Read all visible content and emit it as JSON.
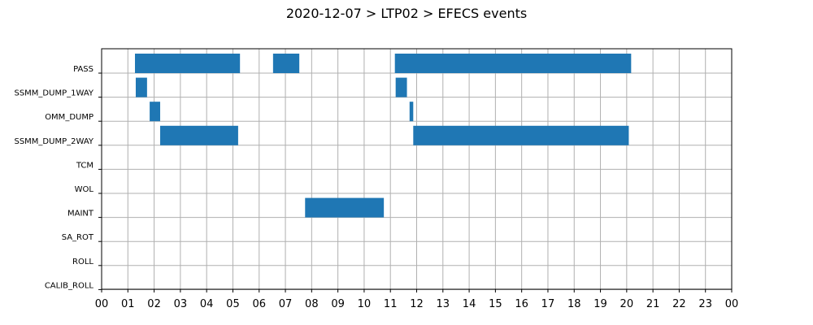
{
  "chart_data": {
    "type": "bar",
    "orientation": "horizontal-timeline",
    "title": "2020-12-07 > LTP02 > EFECS events",
    "xlabel": "",
    "ylabel": "",
    "x_range_hours": [
      0,
      24
    ],
    "x_tick_labels": [
      "00",
      "01",
      "02",
      "03",
      "04",
      "05",
      "06",
      "07",
      "08",
      "09",
      "10",
      "11",
      "12",
      "13",
      "14",
      "15",
      "16",
      "17",
      "18",
      "19",
      "20",
      "21",
      "22",
      "23",
      "00"
    ],
    "categories": [
      "PASS",
      "SSMM_DUMP_1WAY",
      "OMM_DUMP",
      "SSMM_DUMP_2WAY",
      "TCM",
      "WOL",
      "MAINT",
      "SA_ROT",
      "ROLL",
      "CALIB_ROLL"
    ],
    "grid": true,
    "bar_color": "#1f77b4",
    "events": [
      {
        "category": "PASS",
        "start": 1.27,
        "end": 5.27
      },
      {
        "category": "PASS",
        "start": 6.53,
        "end": 7.53
      },
      {
        "category": "PASS",
        "start": 11.17,
        "end": 20.17
      },
      {
        "category": "SSMM_DUMP_1WAY",
        "start": 1.3,
        "end": 1.73
      },
      {
        "category": "SSMM_DUMP_1WAY",
        "start": 11.2,
        "end": 11.63
      },
      {
        "category": "OMM_DUMP",
        "start": 1.83,
        "end": 2.23
      },
      {
        "category": "OMM_DUMP",
        "start": 11.73,
        "end": 11.87
      },
      {
        "category": "SSMM_DUMP_2WAY",
        "start": 2.23,
        "end": 5.2
      },
      {
        "category": "SSMM_DUMP_2WAY",
        "start": 11.87,
        "end": 20.08
      },
      {
        "category": "MAINT",
        "start": 7.75,
        "end": 10.75
      }
    ]
  }
}
